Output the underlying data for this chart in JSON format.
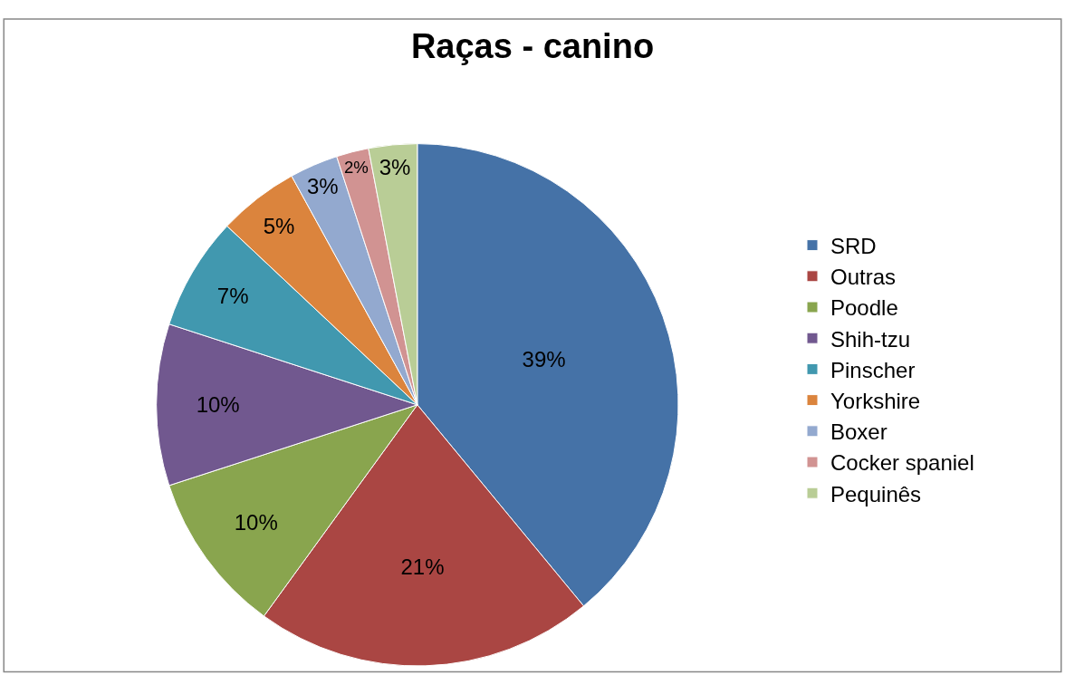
{
  "chart_data": {
    "type": "pie",
    "title": "Raças - canino",
    "categories": [
      "SRD",
      "Outras",
      "Poodle",
      "Shih-tzu",
      "Pinscher",
      "Yorkshire",
      "Boxer",
      "Cocker spaniel",
      "Pequinês"
    ],
    "values": [
      39,
      21,
      10,
      10,
      7,
      5,
      3,
      2,
      3
    ],
    "value_labels": [
      "39%",
      "21%",
      "10%",
      "10%",
      "7%",
      "5%",
      "3%",
      "2%",
      "3%"
    ],
    "colors": [
      "#4572a7",
      "#aa4643",
      "#89a54e",
      "#71588f",
      "#4198af",
      "#db843d",
      "#93a9cf",
      "#d19392",
      "#b9cd96"
    ],
    "legend": "right"
  }
}
